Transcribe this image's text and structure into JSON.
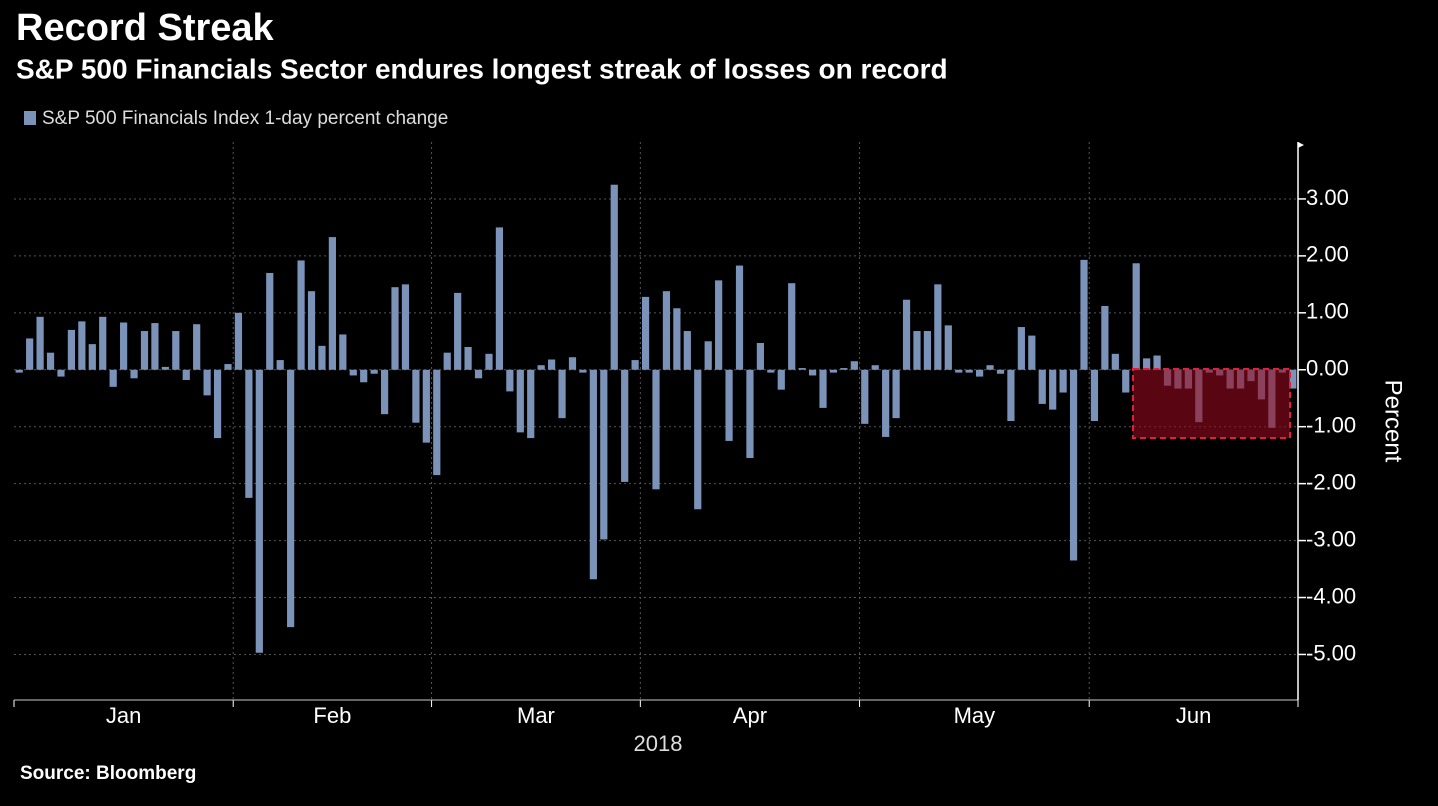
{
  "chart_data": {
    "type": "bar",
    "title": "Record Streak",
    "subtitle": "S&P 500 Financials Sector endures longest streak of losses on record",
    "source": "Source: Bloomberg",
    "y_label": "Percent",
    "x_label": "2018",
    "series": [
      {
        "name": "S&P 500 Financials Index 1-day percent change",
        "color": "#7b93b9"
      }
    ],
    "groups": [
      {
        "label": "Jan",
        "values": [
          -0.05,
          0.55,
          0.93,
          0.3,
          -0.12,
          0.7,
          0.85,
          0.45,
          0.93,
          -0.3,
          0.83,
          -0.15,
          0.68,
          0.82,
          0.05,
          0.68,
          -0.18,
          0.8,
          -0.45,
          -1.2,
          0.1
        ]
      },
      {
        "label": "Feb",
        "values": [
          1.0,
          -2.25,
          -4.97,
          1.7,
          0.17,
          -4.52,
          1.92,
          1.38,
          0.42,
          2.33,
          0.62,
          -0.1,
          -0.22,
          -0.07,
          -0.78,
          1.45,
          1.5,
          -0.93,
          -1.28
        ]
      },
      {
        "label": "Mar",
        "values": [
          -1.85,
          0.3,
          1.35,
          0.4,
          -0.15,
          0.28,
          2.5,
          -0.38,
          -1.1,
          -1.2,
          0.08,
          0.18,
          -0.85,
          0.22,
          -0.05,
          -3.68,
          -2.98,
          3.25,
          -1.97,
          0.17
        ]
      },
      {
        "label": "Apr",
        "values": [
          1.28,
          -2.1,
          1.38,
          1.08,
          0.68,
          -2.45,
          0.5,
          1.57,
          -1.25,
          1.83,
          -1.55,
          0.47,
          -0.05,
          -0.35,
          1.52,
          0.03,
          -0.1,
          -0.67,
          -0.05,
          0.03,
          0.15
        ]
      },
      {
        "label": "May",
        "values": [
          -0.95,
          0.08,
          -1.18,
          -0.85,
          1.23,
          0.68,
          0.68,
          1.5,
          0.78,
          -0.05,
          -0.05,
          -0.12,
          0.08,
          -0.07,
          -0.9,
          0.75,
          0.6,
          -0.6,
          -0.7,
          -0.4,
          -3.35,
          1.93
        ]
      },
      {
        "label": "Jun",
        "values": [
          -0.9,
          1.12,
          0.28,
          -0.4,
          1.87,
          0.2,
          0.25,
          -0.28,
          -0.33,
          -0.33,
          -0.92,
          -0.05,
          -0.1,
          -0.33,
          -0.33,
          -0.2,
          -0.52,
          -1.02,
          -0.05,
          -0.33
        ]
      }
    ],
    "ylim": [
      -5.8,
      4
    ],
    "yticks": [
      {
        "value": -5,
        "label": "-5.00"
      },
      {
        "value": -4,
        "label": "-4.00"
      },
      {
        "value": -3,
        "label": "-3.00"
      },
      {
        "value": -2,
        "label": "-2.00"
      },
      {
        "value": -1,
        "label": "-1.00"
      },
      {
        "value": 0,
        "label": "0.00"
      },
      {
        "value": 1,
        "label": "1.00"
      },
      {
        "value": 2,
        "label": "2.00"
      },
      {
        "value": 3,
        "label": "3.00"
      }
    ],
    "grid": true
  }
}
